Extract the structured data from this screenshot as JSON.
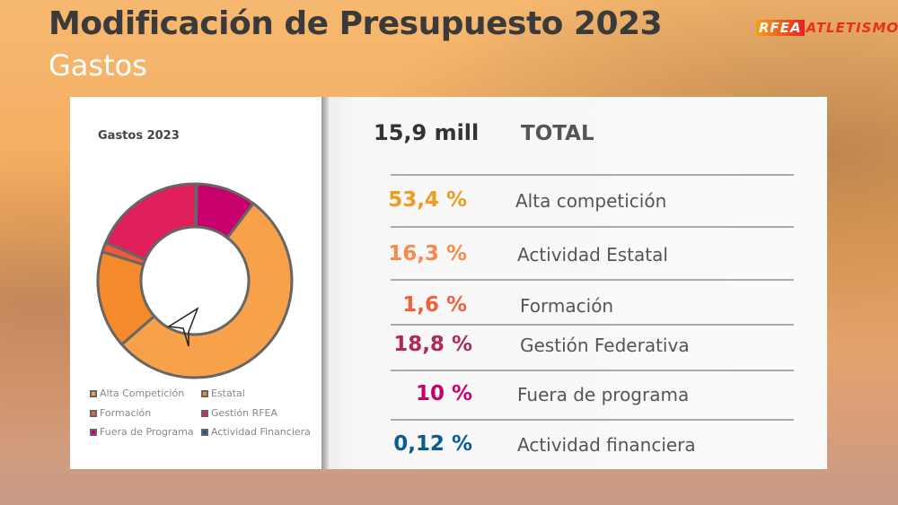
{
  "header": {
    "title": "Modificación de Presupuesto 2023",
    "subtitle": "Gastos",
    "logo_text": "RFEA ATLETISMO"
  },
  "summary": {
    "total_value": "15,9 mill",
    "total_label": "TOTAL"
  },
  "rows": [
    {
      "pct": "53,4 %",
      "label": "Alta competición",
      "color": "#f29a1c"
    },
    {
      "pct": "16,3 %",
      "label": "Actividad Estatal",
      "color": "#f78a4a"
    },
    {
      "pct": "1,6 %",
      "label": "Formación",
      "color": "#f0603c"
    },
    {
      "pct": "18,8 %",
      "label": "Gestión Federativa",
      "color": "#b02a52"
    },
    {
      "pct": "10 %",
      "label": "Fuera de programa",
      "color": "#c8006e"
    },
    {
      "pct": "0,12 %",
      "label": "Actividad financiera",
      "color": "#0a5a94"
    }
  ],
  "chart_data": {
    "type": "pie",
    "title": "Gastos 2023",
    "categories": [
      "Alta Competición",
      "Estatal",
      "Formación",
      "Gestión RFEA",
      "Fuera de Programa",
      "Actividad Financiera"
    ],
    "values": [
      53.4,
      16.3,
      1.6,
      18.8,
      10,
      0.12
    ],
    "colors": [
      "#f7a24a",
      "#f58a2c",
      "#f25a3a",
      "#e0205a",
      "#c8006e",
      "#1a5a8a"
    ],
    "legend": "bottom",
    "donut": true
  }
}
